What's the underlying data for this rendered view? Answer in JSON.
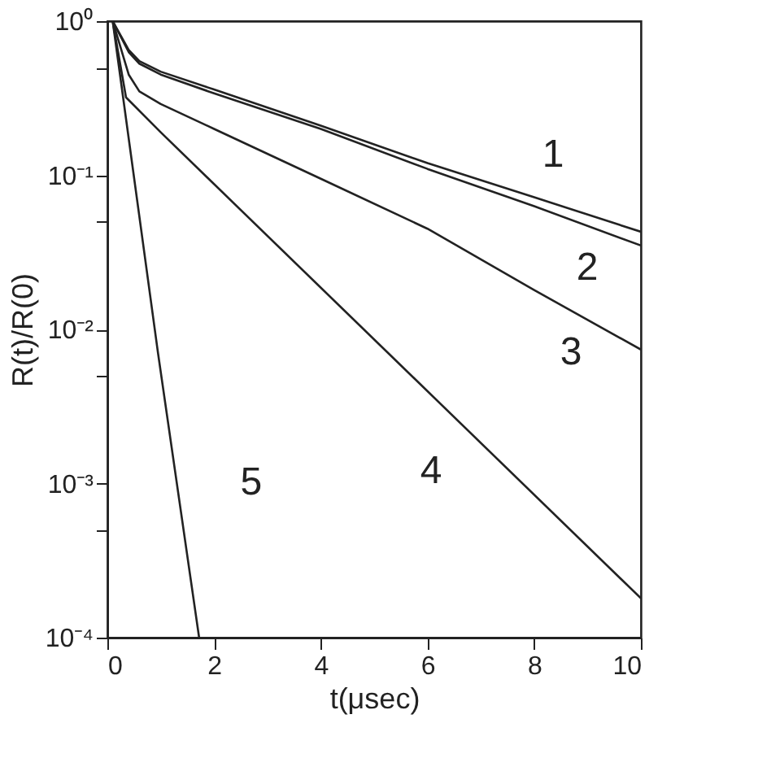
{
  "chart_data": {
    "type": "line",
    "xlabel": "t(μsec)",
    "ylabel": "R(t)/R(0)",
    "log": "y",
    "grid": false,
    "legend": false,
    "marker": "none",
    "line_style": "solid",
    "xlim": [
      0,
      10
    ],
    "xticks": [
      0,
      2,
      4,
      6,
      8,
      10
    ],
    "ylim": [
      0.0001,
      1
    ],
    "yticks": [
      {
        "value": 1,
        "label": "10⁰"
      },
      {
        "value": 0.5,
        "label": null
      },
      {
        "value": 0.1,
        "label": "10⁻¹"
      },
      {
        "value": 0.05,
        "label": null
      },
      {
        "value": 0.01,
        "label": "10⁻²"
      },
      {
        "value": 0.005,
        "label": null
      },
      {
        "value": 0.001,
        "label": "10⁻³"
      },
      {
        "value": 0.0005,
        "label": null
      },
      {
        "value": 0.0001,
        "label": "10⁻⁴"
      }
    ],
    "series": [
      {
        "name": "1",
        "color": "#222222",
        "x": [
          0.1,
          0.4,
          0.6,
          1,
          2,
          4,
          6,
          8,
          10
        ],
        "values": [
          1,
          0.65,
          0.55,
          0.47,
          0.36,
          0.21,
          0.12,
          0.072,
          0.043
        ]
      },
      {
        "name": "2",
        "color": "#222222",
        "x": [
          0.1,
          0.4,
          0.6,
          1,
          2,
          4,
          6,
          8,
          10
        ],
        "values": [
          1,
          0.63,
          0.53,
          0.45,
          0.34,
          0.2,
          0.11,
          0.063,
          0.035
        ]
      },
      {
        "name": "3",
        "color": "#222222",
        "x": [
          0.1,
          0.4,
          0.6,
          1,
          2,
          4,
          6,
          8,
          10
        ],
        "values": [
          1,
          0.45,
          0.35,
          0.29,
          0.2,
          0.095,
          0.045,
          0.018,
          0.0074
        ]
      },
      {
        "name": "4",
        "color": "#222222",
        "x": [
          0.1,
          0.35,
          1,
          10
        ],
        "values": [
          1,
          0.32,
          0.19,
          0.00018
        ]
      },
      {
        "name": "5",
        "color": "#222222",
        "x": [
          0.1,
          0.95,
          1.72
        ],
        "values": [
          1,
          0.007,
          0.0001
        ]
      }
    ]
  }
}
